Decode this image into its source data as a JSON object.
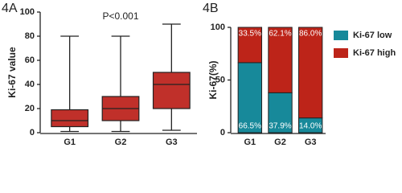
{
  "chart_data": [
    {
      "type": "box",
      "title": "4A",
      "ylabel": "Ki-67 value",
      "annotation": "P<0.001",
      "categories": [
        "G1",
        "G2",
        "G3"
      ],
      "color": "#c0302a",
      "boxes": [
        {
          "min": 1,
          "q1": 5,
          "median": 10,
          "q3": 19,
          "max": 80
        },
        {
          "min": 1,
          "q1": 10,
          "median": 20,
          "q3": 30,
          "max": 80
        },
        {
          "min": 2,
          "q1": 20,
          "median": 40,
          "q3": 50,
          "max": 90
        }
      ],
      "ylim": [
        0,
        100
      ],
      "yticks": [
        0,
        20,
        40,
        60,
        80,
        100
      ]
    },
    {
      "type": "stacked_bar",
      "title": "4B",
      "ylabel": "Ki-67(%)",
      "categories": [
        "G1",
        "G2",
        "G3"
      ],
      "legend": "right",
      "series": [
        {
          "name": "Ki-67 low",
          "color": "#17899a",
          "values": [
            66.5,
            37.9,
            14.0
          ],
          "value_labels": [
            "66.5%",
            "37.9%",
            "14.0%"
          ]
        },
        {
          "name": "Ki-67 high",
          "color": "#bd2419",
          "values": [
            33.5,
            62.1,
            86.0
          ],
          "value_labels": [
            "33.5%",
            "62.1%",
            "86.0%"
          ]
        }
      ],
      "ylim": [
        0,
        100
      ],
      "yticks": [
        0,
        50,
        100
      ]
    }
  ]
}
